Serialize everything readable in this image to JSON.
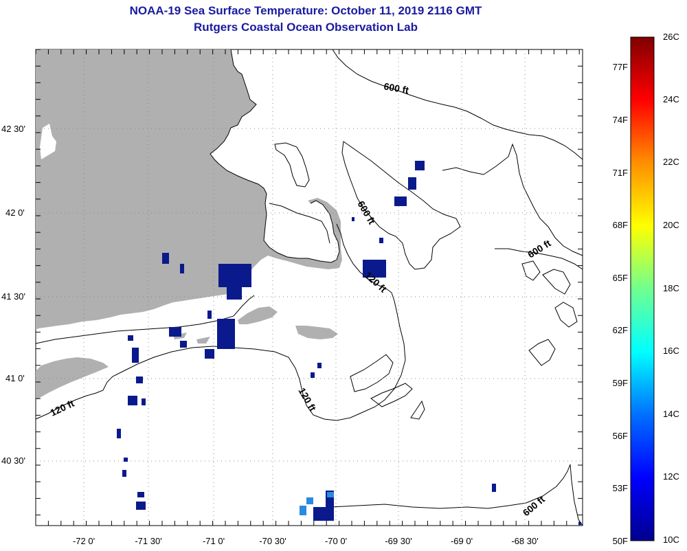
{
  "title": {
    "line1": "NOAA-19 Sea Surface Temperature:  October 11, 2019 2116 GMT",
    "line2": "Rutgers Coastal Ocean Observation Lab"
  },
  "map": {
    "latitude_labels": [
      {
        "text": "42 30'",
        "lat": 42.5
      },
      {
        "text": "42 0'",
        "lat": 42.0
      },
      {
        "text": "41 30'",
        "lat": 41.5
      },
      {
        "text": "41 0'",
        "lat": 41.0
      },
      {
        "text": "40 30'",
        "lat": 40.5
      }
    ],
    "longitude_labels": [
      {
        "text": "-72 0'",
        "lon": -72.0
      },
      {
        "text": "-71 30'",
        "lon": -71.5
      },
      {
        "text": "-71 0'",
        "lon": -71.0
      },
      {
        "text": "-70 30'",
        "lon": -70.5
      },
      {
        "text": "-70 0'",
        "lon": -70.0
      },
      {
        "text": "-69 30'",
        "lon": -69.5
      },
      {
        "text": "-69 0'",
        "lon": -69.0
      },
      {
        "text": "-68 30'",
        "lon": -68.5
      }
    ],
    "contour_labels": [
      "600 ft",
      "600 ft",
      "600 ft",
      "600 ft",
      "120 ft",
      "120 ft",
      "120 ft"
    ],
    "colors": {
      "land": "#b0b0b0",
      "ocean": "#ffffff",
      "contour": "#000000",
      "cold_sst": "#0a1a8c",
      "light_blue_sst": "#2a8ae0"
    }
  },
  "colorbar": {
    "celsius_labels": [
      "26C",
      "24C",
      "22C",
      "20C",
      "18C",
      "16C",
      "14C",
      "12C",
      "10C"
    ],
    "fahrenheit_labels": [
      "77F",
      "74F",
      "71F",
      "68F",
      "65F",
      "62F",
      "59F",
      "56F",
      "53F",
      "50F"
    ]
  }
}
